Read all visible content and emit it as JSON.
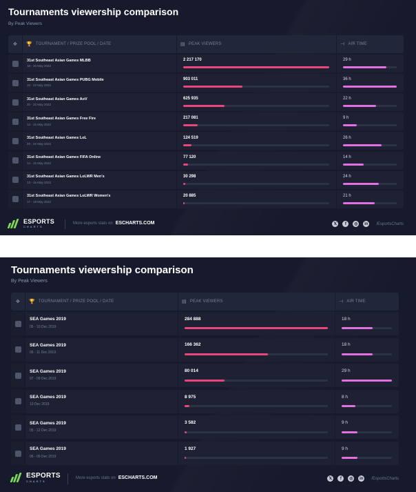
{
  "charts": [
    {
      "title": "Tournaments viewership comparison",
      "subtitle": "By Peak Viewers",
      "headers": {
        "tournament": "TOURNAMENT / PRIZE POOL / DATE",
        "peak": "PEAK VIEWERS",
        "air": "AIR TIME"
      },
      "footer": {
        "brand": "ESPORTS",
        "brand_sub": "CHARTS",
        "more": "More esports stats on",
        "site": "ESCHARTS.COM",
        "handle": "/EsportsCharts"
      }
    },
    {
      "title": "Tournaments viewership comparison",
      "subtitle": "By Peak Viewers",
      "headers": {
        "tournament": "TOURNAMENT / PRIZE POOL / DATE",
        "peak": "PEAK VIEWERS",
        "air": "AIR TIME"
      },
      "footer": {
        "brand": "ESPORTS",
        "brand_sub": "CHARTS",
        "more": "More esports stats on",
        "site": "ESCHARTS.COM",
        "handle": "/EsportsCharts"
      }
    }
  ],
  "chart_data": [
    {
      "type": "bar",
      "title": "Tournaments viewership comparison",
      "subtitle": "By Peak Viewers",
      "categories": [
        "31st Southeast Asian Games MLBB",
        "31st Southeast Asian Games PUBG Mobile",
        "31st Southeast Asian Games AoV",
        "31st Southeast Asian Games Free Fire",
        "31st Southeast Asian Games LoL",
        "31st Southeast Asian Games FIFA Online",
        "31st Southeast Asian Games LoLWR Men's",
        "31st Southeast Asian Games LoLWR Women's"
      ],
      "dates": [
        "18 - 20 May 2022",
        "10 - 22 May 2022",
        "20 - 22 May 2022",
        "13 - 15 May 2022",
        "20 - 22 May 2022",
        "14 - 15 May 2022",
        "13 - 15 May 2022",
        "17 - 18 May 2022"
      ],
      "series": [
        {
          "name": "PEAK VIEWERS",
          "values": [
            2217170,
            903011,
            625935,
            217081,
            124519,
            77120,
            30298,
            20885
          ],
          "labels": [
            "2 217 170",
            "903 011",
            "625 935",
            "217 081",
            "124 519",
            "77 120",
            "30 298",
            "20 885"
          ],
          "max": 2217170,
          "color": "#e8467c"
        },
        {
          "name": "AIR TIME",
          "values": [
            29,
            36,
            22,
            9,
            26,
            14,
            24,
            21
          ],
          "labels": [
            "29 h",
            "36 h",
            "22 h",
            "9 h",
            "26 h",
            "14 h",
            "24 h",
            "21 h"
          ],
          "max": 36,
          "color": "#e46fe0"
        }
      ]
    },
    {
      "type": "bar",
      "title": "Tournaments viewership comparison",
      "subtitle": "By Peak Viewers",
      "categories": [
        "SEA Games 2019",
        "SEA Games 2019",
        "SEA Games 2019",
        "SEA Games 2019",
        "SEA Games 2019",
        "SEA Games 2019"
      ],
      "dates": [
        "05 - 10 Dec 2019",
        "05 - 11 Dec 2019",
        "07 - 09 Dec 2019",
        "10 Dec 2019",
        "05 - 12 Dec 2019",
        "06 - 09 Dec 2019"
      ],
      "series": [
        {
          "name": "PEAK VIEWERS",
          "values": [
            284888,
            166362,
            80014,
            8975,
            3582,
            1927
          ],
          "labels": [
            "284 888",
            "166 362",
            "80 014",
            "8 975",
            "3 582",
            "1 927"
          ],
          "max": 284888,
          "color": "#e8467c"
        },
        {
          "name": "AIR TIME",
          "values": [
            18,
            18,
            29,
            8,
            9,
            9
          ],
          "labels": [
            "18 h",
            "18 h",
            "29 h",
            "8 h",
            "9 h",
            "9 h"
          ],
          "max": 29,
          "color": "#e46fe0"
        }
      ]
    }
  ]
}
